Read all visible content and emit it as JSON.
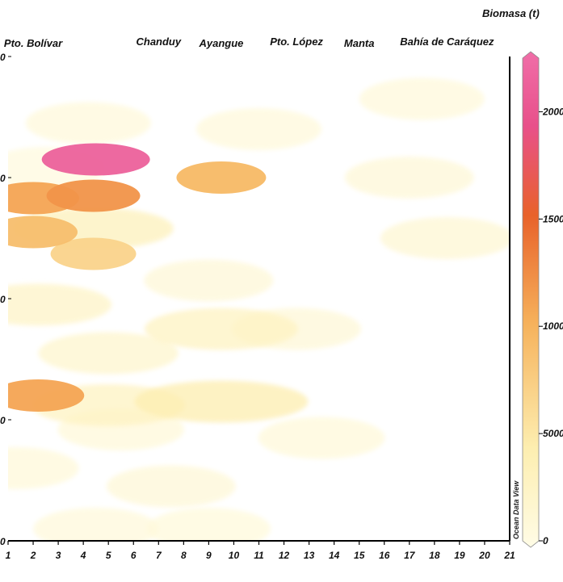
{
  "chart_data": {
    "type": "heatmap",
    "title": "",
    "xlabel": "",
    "ylabel": "",
    "x_ticks": [
      "1",
      "2",
      "3",
      "4",
      "5",
      "6",
      "7",
      "8",
      "9",
      "10",
      "11",
      "12",
      "13",
      "14",
      "15",
      "16",
      "17",
      "18",
      "19",
      "20",
      "21"
    ],
    "xlim": [
      1,
      21
    ],
    "y_ticks_partial": [
      "0",
      "0",
      "0",
      "0",
      "0"
    ],
    "ylim": [
      0,
      4
    ],
    "locations": [
      {
        "name": "Pto. Bolívar",
        "x": 2
      },
      {
        "name": "Chanduy",
        "x": 7
      },
      {
        "name": "Ayangue",
        "x": 9.5
      },
      {
        "name": "Pto. López",
        "x": 12.5
      },
      {
        "name": "Manta",
        "x": 15
      },
      {
        "name": "Bahía de Caráquez",
        "x": 18.5
      }
    ],
    "colorbar": {
      "title": "Biomasa (t)",
      "ticks": [
        "0",
        "5000",
        "10000",
        "15000",
        "20000"
      ],
      "min": 0,
      "max": 22500,
      "colors": [
        "#fffce6",
        "#fdeeb0",
        "#f6b25c",
        "#e8622a",
        "#e8508a",
        "#f06ea8"
      ]
    },
    "watermark": "Ocean Data View",
    "blobs": [
      {
        "x": 4.5,
        "y": 3.15,
        "v": 21000
      },
      {
        "x": 2.5,
        "y": 3.08,
        "v": 600
      },
      {
        "x": 4.2,
        "y": 3.45,
        "v": 900
      },
      {
        "x": 4.4,
        "y": 2.85,
        "v": 12000
      },
      {
        "x": 2.0,
        "y": 2.83,
        "v": 11000
      },
      {
        "x": 2.0,
        "y": 2.55,
        "v": 9000
      },
      {
        "x": 4.4,
        "y": 2.58,
        "v": 3500
      },
      {
        "x": 4.4,
        "y": 2.37,
        "v": 7000
      },
      {
        "x": 9.5,
        "y": 3.0,
        "v": 9500
      },
      {
        "x": 17.0,
        "y": 3.0,
        "v": 1200
      },
      {
        "x": 17.5,
        "y": 3.65,
        "v": 900
      },
      {
        "x": 11.0,
        "y": 3.4,
        "v": 900
      },
      {
        "x": 18.5,
        "y": 2.5,
        "v": 1500
      },
      {
        "x": 2.2,
        "y": 1.95,
        "v": 2500
      },
      {
        "x": 9.0,
        "y": 2.15,
        "v": 1200
      },
      {
        "x": 9.5,
        "y": 1.75,
        "v": 3000
      },
      {
        "x": 12.5,
        "y": 1.75,
        "v": 1200
      },
      {
        "x": 5.0,
        "y": 1.55,
        "v": 2000
      },
      {
        "x": 2.2,
        "y": 1.2,
        "v": 11000
      },
      {
        "x": 5.0,
        "y": 1.12,
        "v": 3000
      },
      {
        "x": 9.5,
        "y": 1.15,
        "v": 4500
      },
      {
        "x": 5.5,
        "y": 0.92,
        "v": 1000
      },
      {
        "x": 13.5,
        "y": 0.85,
        "v": 1000
      },
      {
        "x": 1.3,
        "y": 0.6,
        "v": 1000
      },
      {
        "x": 7.5,
        "y": 0.45,
        "v": 1200
      },
      {
        "x": 4.5,
        "y": 0.1,
        "v": 900
      },
      {
        "x": 9.0,
        "y": 0.1,
        "v": 800
      }
    ]
  }
}
